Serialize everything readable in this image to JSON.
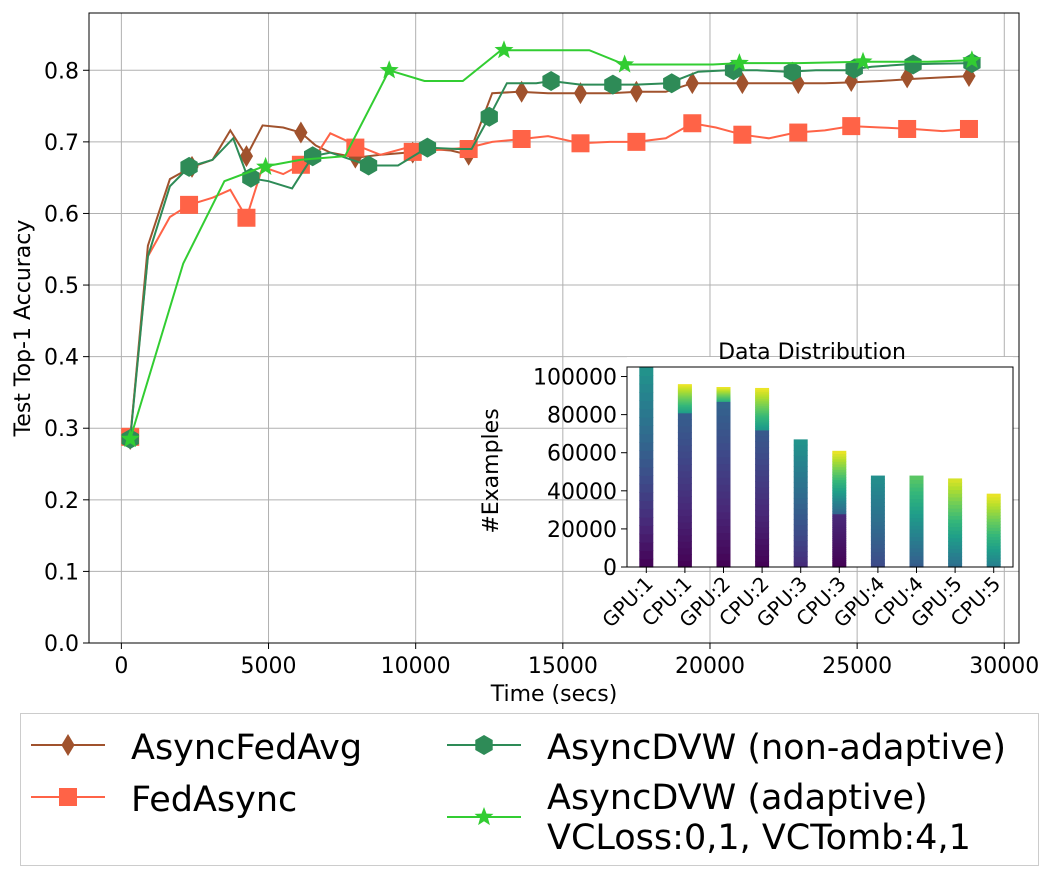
{
  "chart_data": [
    {
      "type": "line",
      "title": "",
      "xlabel": "Time (secs)",
      "ylabel": "Test Top-1 Accuracy",
      "xlim": [
        -1100,
        30500
      ],
      "ylim": [
        0.0,
        0.88
      ],
      "xticks": [
        0,
        5000,
        10000,
        15000,
        20000,
        25000,
        30000
      ],
      "xtick_labels": [
        "0",
        "5000",
        "10000",
        "15000",
        "20000",
        "25000",
        "30000"
      ],
      "yticks": [
        0.0,
        0.1,
        0.2,
        0.3,
        0.4,
        0.5,
        0.6,
        0.7,
        0.8
      ],
      "ytick_labels": [
        "0.0",
        "0.1",
        "0.2",
        "0.3",
        "0.4",
        "0.5",
        "0.6",
        "0.7",
        "0.8"
      ],
      "grid": true,
      "legend_position": "below",
      "series": [
        {
          "name": "AsyncFedAvg",
          "color": "#a0522d",
          "marker": "diamond",
          "x": [
            300,
            900,
            1650,
            2400,
            3100,
            3700,
            4250,
            4800,
            5500,
            6100,
            6600,
            7100,
            8000,
            8800,
            9700,
            10500,
            11200,
            11800,
            12600,
            13500,
            14500,
            15600,
            16600,
            17500,
            18500,
            19400,
            20200,
            21100,
            22000,
            22900,
            23900,
            24800,
            25800,
            26900,
            27900,
            28900
          ],
          "y": [
            0.285,
            0.555,
            0.648,
            0.665,
            0.675,
            0.716,
            0.68,
            0.723,
            0.72,
            0.713,
            0.695,
            0.685,
            0.678,
            0.682,
            0.685,
            0.69,
            0.688,
            0.682,
            0.768,
            0.77,
            0.768,
            0.768,
            0.768,
            0.77,
            0.77,
            0.782,
            0.782,
            0.782,
            0.782,
            0.782,
            0.782,
            0.783,
            0.785,
            0.788,
            0.79,
            0.792
          ],
          "markers_x": [
            300,
            2400,
            4250,
            6100,
            7950,
            9900,
            11800,
            13600,
            15600,
            17500,
            19400,
            21100,
            23000,
            24800,
            26700,
            28800
          ],
          "markers_y": [
            0.285,
            0.665,
            0.68,
            0.713,
            0.678,
            0.685,
            0.682,
            0.77,
            0.768,
            0.77,
            0.782,
            0.782,
            0.782,
            0.785,
            0.79,
            0.792
          ]
        },
        {
          "name": "FedAsync",
          "color": "#ff6347",
          "marker": "square",
          "x": [
            300,
            900,
            1650,
            2300,
            3100,
            3700,
            4250,
            4800,
            5500,
            6100,
            6600,
            7100,
            8000,
            8800,
            9700,
            10500,
            11200,
            11800,
            12600,
            13600,
            14500,
            15600,
            16600,
            17500,
            18500,
            19400,
            20200,
            21100,
            22000,
            22900,
            23900,
            24800,
            25800,
            26900,
            27900,
            28900
          ],
          "y": [
            0.288,
            0.54,
            0.595,
            0.612,
            0.622,
            0.633,
            0.594,
            0.665,
            0.655,
            0.668,
            0.68,
            0.712,
            0.695,
            0.682,
            0.692,
            0.688,
            0.69,
            0.692,
            0.7,
            0.704,
            0.708,
            0.698,
            0.7,
            0.7,
            0.705,
            0.726,
            0.72,
            0.71,
            0.705,
            0.713,
            0.716,
            0.722,
            0.72,
            0.718,
            0.715,
            0.718
          ],
          "markers_x": [
            300,
            2300,
            4250,
            6100,
            7950,
            9900,
            11800,
            13600,
            15600,
            17500,
            19400,
            21100,
            23000,
            24800,
            26700,
            28800
          ],
          "markers_y": [
            0.288,
            0.612,
            0.594,
            0.668,
            0.692,
            0.686,
            0.69,
            0.704,
            0.698,
            0.7,
            0.726,
            0.71,
            0.713,
            0.722,
            0.718,
            0.718
          ]
        },
        {
          "name": "AsyncDVW (non-adaptive)",
          "color": "#2e8b57",
          "marker": "hexagon",
          "x": [
            300,
            900,
            1650,
            2300,
            3100,
            3800,
            4300,
            5000,
            5800,
            6500,
            7100,
            8400,
            9400,
            10400,
            11400,
            11900,
            12500,
            13100,
            14100,
            14600,
            15600,
            16500,
            17500,
            18600,
            19600,
            20600,
            21600,
            22600,
            23600,
            24600,
            25500,
            26600,
            27600,
            28900
          ],
          "y": [
            0.285,
            0.54,
            0.638,
            0.665,
            0.675,
            0.705,
            0.65,
            0.645,
            0.635,
            0.68,
            0.685,
            0.667,
            0.667,
            0.692,
            0.69,
            0.69,
            0.735,
            0.782,
            0.782,
            0.785,
            0.78,
            0.78,
            0.78,
            0.782,
            0.798,
            0.8,
            0.8,
            0.798,
            0.8,
            0.8,
            0.805,
            0.808,
            0.809,
            0.81
          ],
          "markers_x": [
            300,
            2300,
            4400,
            6500,
            8400,
            10400,
            12500,
            14600,
            16700,
            18700,
            20800,
            22800,
            24900,
            26900,
            28900
          ],
          "markers_y": [
            0.285,
            0.665,
            0.65,
            0.68,
            0.667,
            0.692,
            0.735,
            0.785,
            0.78,
            0.782,
            0.8,
            0.798,
            0.802,
            0.808,
            0.81
          ]
        },
        {
          "name": "AsyncDVW (adaptive)\nVCLoss:0,1, VCTomb:4,1",
          "color": "#32cd32",
          "marker": "star",
          "x": [
            300,
            2100,
            3500,
            4800,
            6100,
            7600,
            9100,
            10300,
            11600,
            12900,
            14400,
            15900,
            17100,
            18400,
            20100,
            21000,
            23000,
            25200,
            27400,
            28900
          ],
          "y": [
            0.285,
            0.53,
            0.645,
            0.665,
            0.675,
            0.68,
            0.8,
            0.785,
            0.785,
            0.828,
            0.828,
            0.828,
            0.808,
            0.808,
            0.808,
            0.81,
            0.81,
            0.812,
            0.812,
            0.814
          ],
          "markers_x": [
            300,
            4900,
            9100,
            13000,
            17100,
            21000,
            25200,
            28900
          ],
          "markers_y": [
            0.285,
            0.665,
            0.8,
            0.828,
            0.808,
            0.81,
            0.812,
            0.814
          ]
        }
      ]
    },
    {
      "type": "bar",
      "stacked": true,
      "title": "Data Distribution",
      "xlabel": "",
      "ylabel": "#Examples",
      "ylim": [
        0,
        105000
      ],
      "yticks": [
        0,
        20000,
        40000,
        60000,
        80000,
        100000
      ],
      "ytick_labels": [
        "0",
        "20000",
        "40000",
        "60000",
        "80000",
        "100000"
      ],
      "categories": [
        "GPU:1",
        "CPU:1",
        "GPU:2",
        "CPU:2",
        "GPU:3",
        "CPU:3",
        "GPU:4",
        "CPU:4",
        "GPU:5",
        "CPU:5"
      ],
      "totals": [
        105000,
        96000,
        94500,
        94000,
        67000,
        61000,
        48000,
        48000,
        46500,
        38500
      ],
      "colormap": "viridis",
      "segments": [
        [
          {
            "value": 105000,
            "c0": 0.0,
            "c1": 0.52
          }
        ],
        [
          {
            "value": 81000,
            "c0": 0.0,
            "c1": 0.3
          },
          {
            "value": 15000,
            "c0": 0.55,
            "c1": 0.98
          }
        ],
        [
          {
            "value": 87000,
            "c0": 0.0,
            "c1": 0.32
          },
          {
            "value": 7500,
            "c0": 0.62,
            "c1": 0.98
          }
        ],
        [
          {
            "value": 72000,
            "c0": 0.0,
            "c1": 0.28
          },
          {
            "value": 22000,
            "c0": 0.52,
            "c1": 0.98
          }
        ],
        [
          {
            "value": 67000,
            "c0": 0.12,
            "c1": 0.52
          }
        ],
        [
          {
            "value": 28000,
            "c0": 0.0,
            "c1": 0.12
          },
          {
            "value": 33000,
            "c0": 0.32,
            "c1": 0.98
          }
        ],
        [
          {
            "value": 48000,
            "c0": 0.22,
            "c1": 0.5
          }
        ],
        [
          {
            "value": 48000,
            "c0": 0.28,
            "c1": 0.75
          }
        ],
        [
          {
            "value": 46500,
            "c0": 0.35,
            "c1": 0.95
          }
        ],
        [
          {
            "value": 38500,
            "c0": 0.42,
            "c1": 0.98
          }
        ]
      ]
    }
  ]
}
